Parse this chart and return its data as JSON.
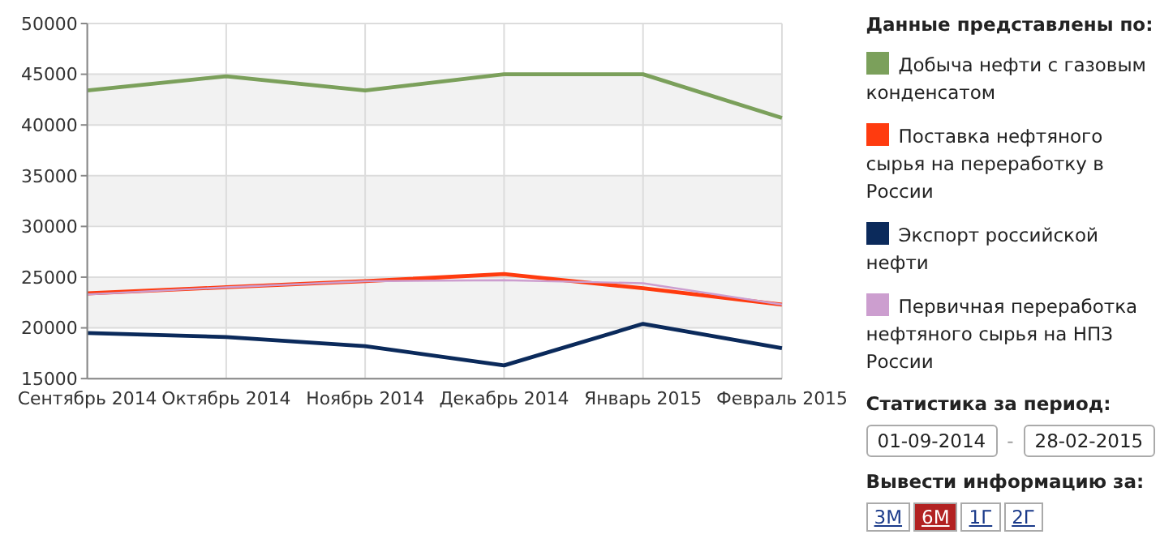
{
  "chart_data": {
    "type": "line",
    "legend_title": "Данные представлены по:",
    "legend": "right",
    "grid": true,
    "categories": [
      "Сентябрь 2014",
      "Октябрь 2014",
      "Ноябрь 2014",
      "Декабрь 2014",
      "Январь 2015",
      "Февраль 2015"
    ],
    "ylim": [
      15000,
      50000
    ],
    "yticks": [
      15000,
      20000,
      25000,
      30000,
      35000,
      40000,
      45000,
      50000
    ],
    "series": [
      {
        "name": "Добыча нефти с газовым конденсатом",
        "color": "#7ba05b",
        "values": [
          43400,
          44800,
          43400,
          45000,
          45000,
          40700
        ]
      },
      {
        "name": "Поставка нефтяного сырья на переработку в России",
        "color": "#ff3b0f",
        "values": [
          23400,
          24000,
          24600,
          25300,
          23900,
          22300
        ]
      },
      {
        "name": "Экспорт российской нефти",
        "color": "#0b2a5b",
        "values": [
          19500,
          19100,
          18200,
          16300,
          20400,
          18000
        ]
      },
      {
        "name": "Первичная переработка нефтяного сырья на НПЗ России",
        "color": "#cc9ecf",
        "values": [
          23300,
          24000,
          24600,
          24700,
          24400,
          22300
        ]
      }
    ],
    "annotations": [
      "Статистика за период:",
      "01-09-2014",
      "-",
      "28-02-2015",
      "Вывести информацию за:",
      "3М",
      "6М",
      "1Г",
      "2Г"
    ]
  }
}
